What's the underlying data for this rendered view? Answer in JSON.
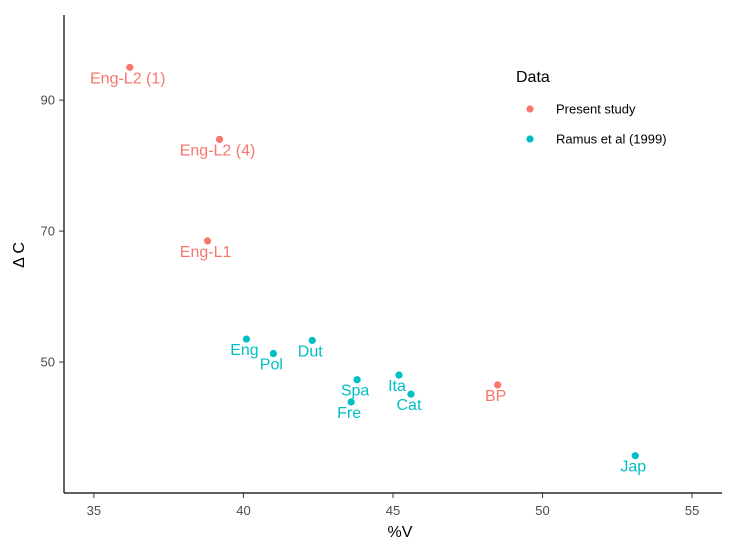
{
  "chart_data": {
    "type": "scatter",
    "xlabel": "%V",
    "ylabel": "Δ C",
    "xlim": [
      34,
      56
    ],
    "ylim": [
      30,
      103
    ],
    "x_ticks": [
      35,
      40,
      45,
      50,
      55
    ],
    "y_ticks": [
      50,
      70,
      90
    ],
    "x_tick_labels": [
      "35",
      "40",
      "45",
      "50",
      "55"
    ],
    "y_tick_labels": [
      "50",
      "70",
      "90"
    ],
    "grid": false,
    "legend": {
      "title": "Data",
      "placement": "top-right",
      "entries": [
        {
          "label": "Present study",
          "color": "#F8766D"
        },
        {
          "label": "Ramus et al (1999)",
          "color": "#00BFC4"
        }
      ]
    },
    "series": [
      {
        "name": "Present study",
        "color": "#F8766D",
        "points": [
          {
            "label": "Eng-L2 (1)",
            "x": 36.2,
            "y": 95.0
          },
          {
            "label": "Eng-L2 (4)",
            "x": 39.2,
            "y": 84.0
          },
          {
            "label": "Eng-L1",
            "x": 38.8,
            "y": 68.5
          },
          {
            "label": "BP",
            "x": 48.5,
            "y": 46.5
          }
        ]
      },
      {
        "name": "Ramus et al (1999)",
        "color": "#00BFC4",
        "points": [
          {
            "label": "Eng",
            "x": 40.1,
            "y": 53.5
          },
          {
            "label": "Pol",
            "x": 41.0,
            "y": 51.3
          },
          {
            "label": "Dut",
            "x": 42.3,
            "y": 53.3
          },
          {
            "label": "Spa",
            "x": 43.8,
            "y": 47.3
          },
          {
            "label": "Fre",
            "x": 43.6,
            "y": 43.9
          },
          {
            "label": "Ita",
            "x": 45.2,
            "y": 48.0
          },
          {
            "label": "Cat",
            "x": 45.6,
            "y": 45.1
          },
          {
            "label": "Jap",
            "x": 53.1,
            "y": 35.7
          }
        ]
      }
    ]
  }
}
